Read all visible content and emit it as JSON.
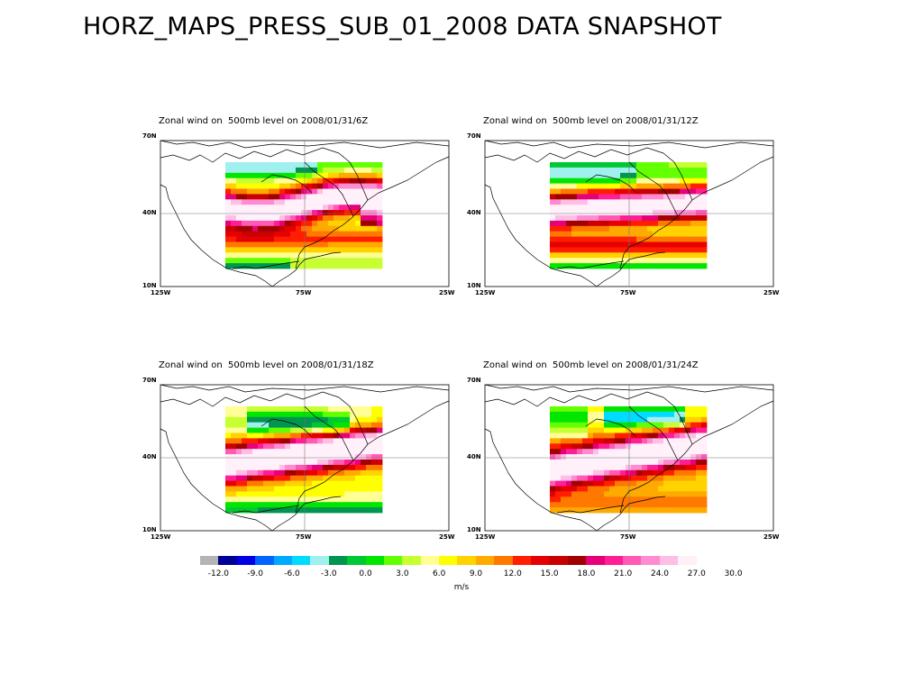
{
  "title": "HORZ_MAPS_PRESS_SUB_01_2008 DATA SNAPSHOT",
  "panels": [
    {
      "title": "Zonal wind on  500mb level on 2008/01/31/6Z",
      "lat_labels": [
        "70N",
        "40N",
        "10N"
      ],
      "lon_labels": [
        "125W",
        "75W",
        "25W"
      ],
      "pattern": "6z"
    },
    {
      "title": "Zonal wind on  500mb level on 2008/01/31/12Z",
      "lat_labels": [
        "70N",
        "40N",
        "10N"
      ],
      "lon_labels": [
        "125W",
        "75W",
        "25W"
      ],
      "pattern": "12z"
    },
    {
      "title": "Zonal wind on  500mb level on 2008/01/31/18Z",
      "lat_labels": [
        "70N",
        "40N",
        "10N"
      ],
      "lon_labels": [
        "125W",
        "75W",
        "25W"
      ],
      "pattern": "18z"
    },
    {
      "title": "Zonal wind on  500mb level on 2008/01/31/24Z",
      "lat_labels": [
        "70N",
        "40N",
        "10N"
      ],
      "lon_labels": [
        "125W",
        "75W",
        "25W"
      ],
      "pattern": "24z"
    }
  ],
  "colorbar": {
    "ticks": [
      "-12.0",
      "-9.0",
      "-6.0",
      "-3.0",
      "0.0",
      "3.0",
      "6.0",
      "9.0",
      "12.0",
      "15.0",
      "18.0",
      "21.0",
      "24.0",
      "27.0",
      "30.0"
    ],
    "units": "m/s",
    "colors": [
      "#b4b4b4",
      "#000096",
      "#0000e6",
      "#0064ff",
      "#00aaff",
      "#00dcff",
      "#a0f0f0",
      "#009650",
      "#00c832",
      "#00e600",
      "#64ff00",
      "#c8ff32",
      "#ffff96",
      "#ffff00",
      "#ffd200",
      "#ffaa00",
      "#ff7800",
      "#ff1e00",
      "#e60000",
      "#c80000",
      "#a00000",
      "#e6007a",
      "#ff1e96",
      "#ff5ab4",
      "#ff8cd2",
      "#ffbee6",
      "#fff0fa"
    ]
  }
}
